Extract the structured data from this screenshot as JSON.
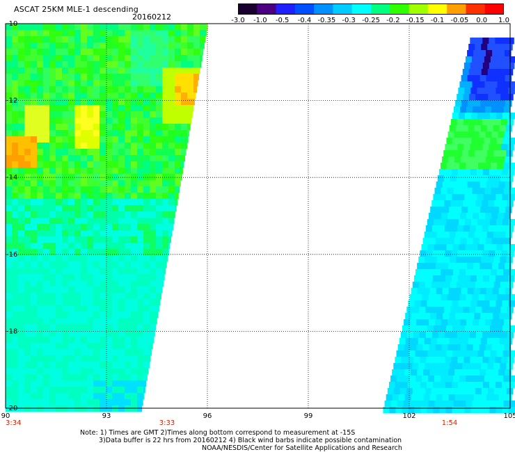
{
  "header": {
    "title": "ASCAT 25KM MLE-1 descending",
    "date": "20160212"
  },
  "colorbar": {
    "labels": [
      "-3.0",
      "-1.0",
      "-0.5",
      "-0.4",
      "-0.35",
      "-0.3",
      "-0.25",
      "-0.2",
      "-0.15",
      "-0.1",
      "-0.05",
      "0.0",
      "1.0"
    ],
    "colors": [
      "#1a0030",
      "#4b0082",
      "#2020ff",
      "#0050ff",
      "#0090ff",
      "#00ccff",
      "#00ffff",
      "#00ff80",
      "#30ff00",
      "#a0ff00",
      "#ffff00",
      "#ffa000",
      "#ff3000",
      "#ff0000"
    ]
  },
  "chart_data": {
    "type": "heatmap",
    "x_ticks": [
      "90",
      "93",
      "96",
      "99",
      "102",
      "105"
    ],
    "y_ticks": [
      "-10",
      "-12",
      "-14",
      "-16",
      "-18",
      "-20"
    ],
    "xlim": [
      90,
      105
    ],
    "ylim": [
      -20,
      -10
    ],
    "grid": true,
    "time_labels": [
      {
        "text": "3:34",
        "lon": 90
      },
      {
        "text": "3:33",
        "lon": 94.8
      },
      {
        "text": "1:54",
        "lon": 103.2
      }
    ]
  },
  "notes": {
    "line1": "Note: 1) Times are GMT 2)Times along bottom correspond to measurement at -15S",
    "line2": "3)Data buffer is 22 hrs from 20160212 4) Black wind barbs indicate possible contamination",
    "line3": "NOAA/NESDIS/Center for Satellite Applications and Research"
  }
}
